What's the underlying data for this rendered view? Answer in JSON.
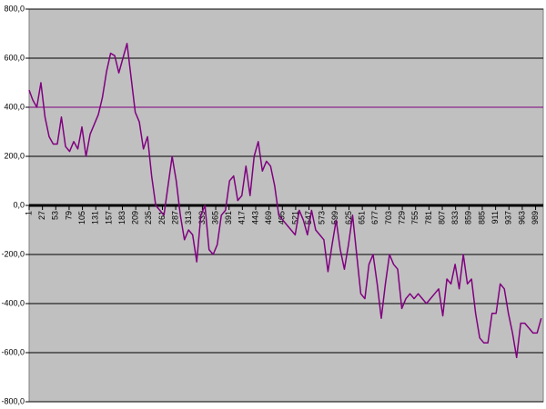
{
  "chart_data": {
    "type": "line",
    "color": "#800080",
    "xlim": [
      1,
      1004
    ],
    "ylim": [
      -800,
      800
    ],
    "yticks": [
      {
        "value": -800,
        "label": "-800,0"
      },
      {
        "value": -600,
        "label": "-600,0"
      },
      {
        "value": -400,
        "label": "-400,0"
      },
      {
        "value": -200,
        "label": "-200,0"
      },
      {
        "value": 0,
        "label": "0,0"
      },
      {
        "value": 200,
        "label": "200,0"
      },
      {
        "value": 400,
        "label": "400,0"
      },
      {
        "value": 600,
        "label": "600,0"
      },
      {
        "value": 800,
        "label": "800,0"
      }
    ],
    "xticks": [
      1,
      27,
      53,
      79,
      105,
      131,
      157,
      183,
      209,
      235,
      261,
      287,
      313,
      339,
      365,
      391,
      417,
      443,
      469,
      495,
      521,
      547,
      573,
      599,
      625,
      651,
      677,
      703,
      729,
      755,
      781,
      807,
      833,
      859,
      885,
      911,
      937,
      963,
      989
    ],
    "grid": true,
    "reference_lines": [
      {
        "value": 400,
        "color": "#800080"
      }
    ],
    "x": [
      1,
      8,
      16,
      24,
      32,
      40,
      48,
      56,
      64,
      72,
      80,
      88,
      96,
      104,
      112,
      120,
      128,
      136,
      144,
      152,
      160,
      168,
      176,
      184,
      192,
      200,
      208,
      216,
      224,
      232,
      240,
      248,
      256,
      264,
      272,
      280,
      288,
      296,
      304,
      312,
      320,
      328,
      336,
      344,
      352,
      360,
      368,
      376,
      384,
      392,
      400,
      408,
      416,
      424,
      432,
      440,
      448,
      456,
      464,
      472,
      480,
      488,
      496,
      504,
      512,
      520,
      528,
      536,
      544,
      552,
      560,
      568,
      576,
      584,
      592,
      600,
      608,
      616,
      624,
      632,
      640,
      648,
      656,
      664,
      672,
      680,
      688,
      696,
      704,
      712,
      720,
      728,
      736,
      744,
      752,
      760,
      768,
      776,
      784,
      792,
      800,
      808,
      816,
      824,
      832,
      840,
      848,
      856,
      864,
      872,
      880,
      888,
      896,
      904,
      912,
      920,
      928,
      936,
      944,
      952,
      960,
      968,
      976,
      984,
      992,
      1000
    ],
    "values": [
      470,
      430,
      400,
      500,
      360,
      280,
      250,
      250,
      360,
      240,
      220,
      260,
      230,
      320,
      200,
      290,
      330,
      370,
      440,
      545,
      620,
      610,
      540,
      600,
      660,
      520,
      380,
      340,
      230,
      280,
      120,
      0,
      -20,
      -40,
      80,
      200,
      100,
      -40,
      -140,
      -100,
      -120,
      -230,
      -40,
      0,
      -180,
      -200,
      -160,
      -40,
      -20,
      100,
      120,
      20,
      40,
      160,
      40,
      200,
      260,
      140,
      180,
      160,
      80,
      -40,
      -60,
      -80,
      -100,
      -120,
      -20,
      -60,
      -120,
      -20,
      -100,
      -120,
      -140,
      -270,
      -160,
      -60,
      -180,
      -260,
      -160,
      -40,
      -200,
      -360,
      -380,
      -240,
      -200,
      -320,
      -460,
      -320,
      -200,
      -240,
      -260,
      -420,
      -380,
      -360,
      -380,
      -360,
      -380,
      -400,
      -380,
      -360,
      -340,
      -450,
      -300,
      -320,
      -240,
      -340,
      -200,
      -320,
      -300,
      -440,
      -540,
      -560,
      -560,
      -440,
      -440,
      -320,
      -340,
      -440,
      -520,
      -620,
      -480,
      -480,
      -500,
      -520,
      -520,
      -460
    ]
  }
}
